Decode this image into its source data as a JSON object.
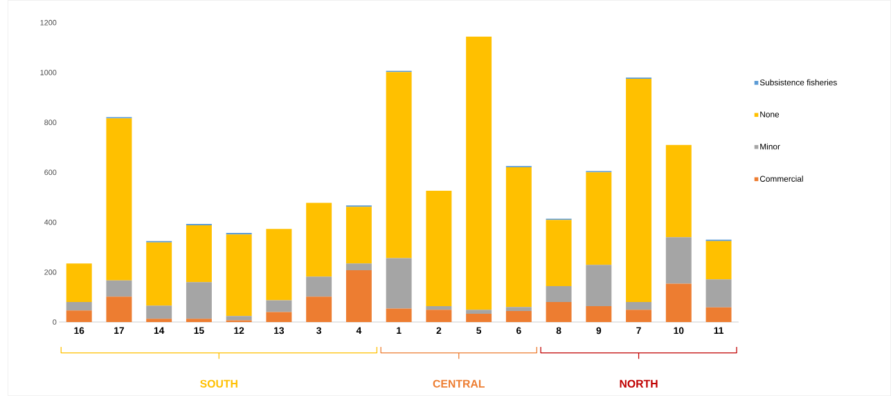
{
  "chart_data": {
    "type": "bar",
    "stacked": true,
    "categories": [
      "16",
      "17",
      "14",
      "15",
      "12",
      "13",
      "3",
      "4",
      "1",
      "2",
      "5",
      "6",
      "8",
      "9",
      "7",
      "10",
      "11"
    ],
    "series": [
      {
        "name": "Commercial",
        "color": "#ed7d31",
        "values": [
          46,
          102,
          13,
          13,
          7,
          40,
          102,
          208,
          54,
          49,
          33,
          44,
          80,
          64,
          49,
          154,
          59
        ]
      },
      {
        "name": "Minor",
        "color": "#a5a5a5",
        "values": [
          34,
          65,
          53,
          147,
          17,
          47,
          80,
          27,
          202,
          15,
          16,
          16,
          64,
          165,
          31,
          186,
          112
        ]
      },
      {
        "name": "None",
        "color": "#ffc000",
        "values": [
          155,
          649,
          253,
          228,
          327,
          286,
          296,
          227,
          746,
          462,
          1095,
          560,
          265,
          371,
          895,
          370,
          154
        ]
      },
      {
        "name": "Subsistence fisheries",
        "color": "#5b9bd5",
        "values": [
          0,
          5,
          6,
          5,
          6,
          0,
          0,
          5,
          5,
          0,
          0,
          5,
          5,
          5,
          5,
          0,
          5
        ]
      }
    ],
    "ylim": [
      0,
      1200
    ],
    "yticks": [
      0,
      200,
      400,
      600,
      800,
      1000,
      1200
    ],
    "legend": "right",
    "annotations": [
      "SOUTH",
      "CENTRAL",
      "NORTH"
    ]
  }
}
